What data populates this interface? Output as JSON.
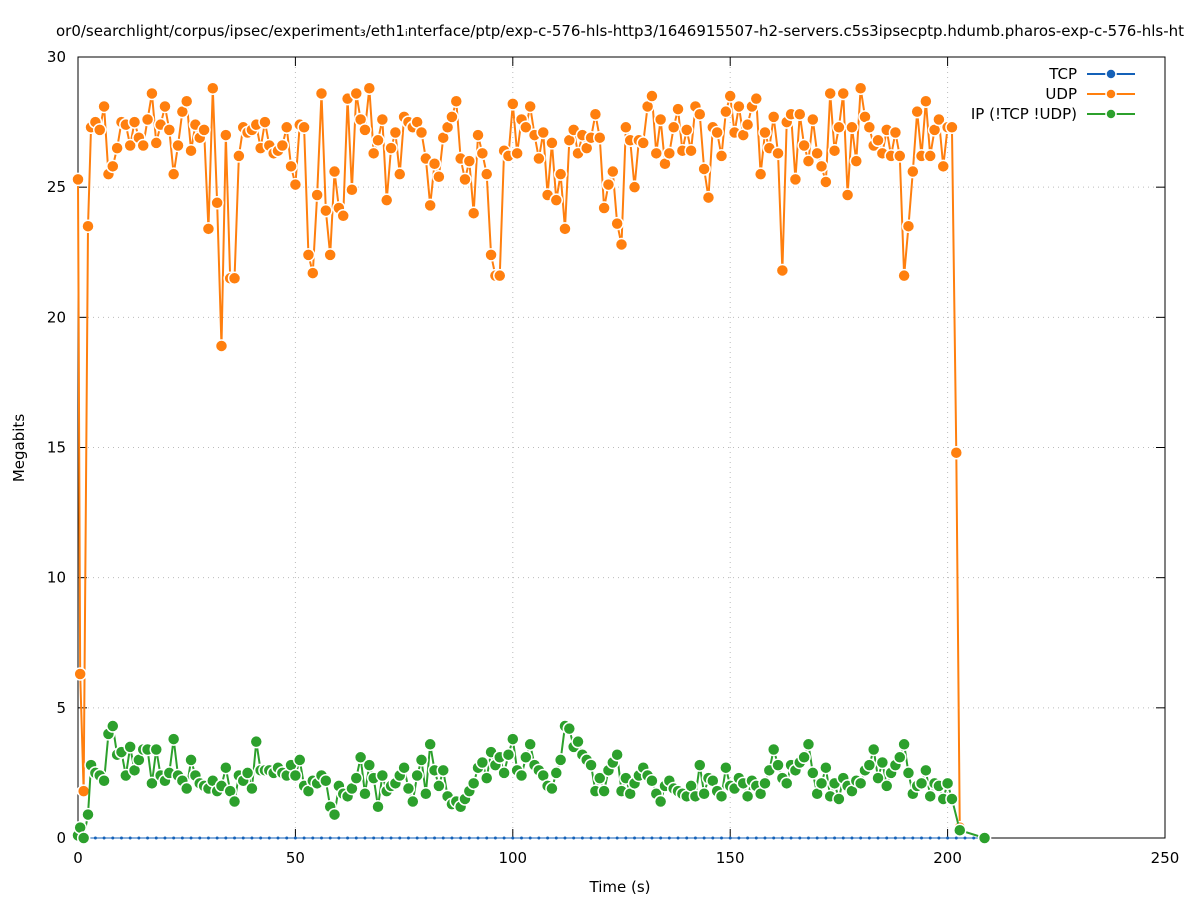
{
  "chart_data": {
    "type": "line",
    "title": "or0/searchlight/corpus/ipsec/experiment₃/eth1ᵢnterface/ptp/exp-c-576-hls-http3/1646915507-h2-servers.c5s3ipsecptp.hdumb.pharos-exp-c-576-hls-ht",
    "xlabel": "Time (s)",
    "ylabel": "Megabits",
    "xlim": [
      0,
      250
    ],
    "xticks": [
      0,
      50,
      100,
      150,
      200,
      250
    ],
    "ylim": [
      0,
      30
    ],
    "yticks": [
      0,
      5,
      10,
      15,
      20,
      25,
      30
    ],
    "grid": true,
    "legend": "top-right",
    "series": [
      {
        "name": "TCP",
        "color": "#1461b8",
        "x": [
          0,
          2,
          4,
          6,
          8,
          10,
          12,
          14,
          16,
          18,
          20,
          22,
          24,
          26,
          28,
          30,
          32,
          34,
          36,
          38,
          40,
          42,
          44,
          46,
          48,
          50,
          52,
          54,
          56,
          58,
          60,
          62,
          64,
          66,
          68,
          70,
          72,
          74,
          76,
          78,
          80,
          82,
          84,
          86,
          88,
          90,
          92,
          94,
          96,
          98,
          100,
          102,
          104,
          106,
          108,
          110,
          112,
          114,
          116,
          118,
          120,
          122,
          124,
          126,
          128,
          130,
          132,
          134,
          136,
          138,
          140,
          142,
          144,
          146,
          148,
          150,
          152,
          154,
          156,
          158,
          160,
          162,
          164,
          166,
          168,
          170,
          172,
          174,
          176,
          178,
          180,
          182,
          184,
          186,
          188,
          190,
          192,
          194,
          196,
          198,
          200,
          202,
          204,
          206,
          208
        ],
        "values": [
          0,
          0,
          0,
          0,
          0,
          0,
          0,
          0,
          0,
          0,
          0,
          0,
          0,
          0,
          0,
          0,
          0,
          0,
          0,
          0,
          0,
          0,
          0,
          0,
          0,
          0,
          0,
          0,
          0,
          0,
          0,
          0,
          0,
          0,
          0,
          0,
          0,
          0,
          0,
          0,
          0,
          0,
          0,
          0,
          0,
          0,
          0,
          0,
          0,
          0,
          0,
          0,
          0,
          0,
          0,
          0,
          0,
          0,
          0,
          0,
          0,
          0,
          0,
          0,
          0,
          0,
          0,
          0,
          0,
          0,
          0,
          0,
          0,
          0,
          0,
          0,
          0,
          0,
          0,
          0,
          0,
          0,
          0,
          0,
          0,
          0,
          0,
          0,
          0,
          0,
          0,
          0,
          0,
          0,
          0,
          0,
          0,
          0,
          0,
          0,
          0,
          0,
          0,
          0,
          0
        ]
      },
      {
        "name": "UDP",
        "color": "#ff7f0e",
        "x": [
          0,
          0.5,
          1.3,
          2.3,
          3,
          4,
          5,
          6,
          7,
          8,
          9,
          10,
          11,
          12,
          13,
          14,
          15,
          16,
          17,
          18,
          19,
          20,
          21,
          22,
          23,
          24,
          25,
          26,
          27,
          28,
          29,
          30,
          31,
          32,
          33,
          34,
          35,
          36,
          37,
          38,
          39,
          40,
          41,
          42,
          43,
          44,
          45,
          46,
          47,
          48,
          49,
          50,
          51,
          52,
          53,
          54,
          55,
          56,
          57,
          58,
          59,
          60,
          61,
          62,
          63,
          64,
          65,
          66,
          67,
          68,
          69,
          70,
          71,
          72,
          73,
          74,
          75,
          76,
          77,
          78,
          79,
          80,
          81,
          82,
          83,
          84,
          85,
          86,
          87,
          88,
          89,
          90,
          91,
          92,
          93,
          94,
          95,
          96,
          97,
          98,
          99,
          100,
          101,
          102,
          103,
          104,
          105,
          106,
          107,
          108,
          109,
          110,
          111,
          112,
          113,
          114,
          115,
          116,
          117,
          118,
          119,
          120,
          121,
          122,
          123,
          124,
          125,
          126,
          127,
          128,
          129,
          130,
          131,
          132,
          133,
          134,
          135,
          136,
          137,
          138,
          139,
          140,
          141,
          142,
          143,
          144,
          145,
          146,
          147,
          148,
          149,
          150,
          151,
          152,
          153,
          154,
          155,
          156,
          157,
          158,
          159,
          160,
          161,
          162,
          163,
          164,
          165,
          166,
          167,
          168,
          169,
          170,
          171,
          172,
          173,
          174,
          175,
          176,
          177,
          178,
          179,
          180,
          181,
          182,
          183,
          184,
          185,
          186,
          187,
          188,
          189,
          190,
          191,
          192,
          193,
          194,
          195,
          196,
          197,
          198,
          199,
          200,
          201,
          202,
          202.8
        ],
        "values": [
          25.3,
          6.3,
          1.8,
          23.5,
          27.3,
          27.5,
          27.2,
          28.1,
          25.5,
          25.8,
          26.5,
          27.5,
          27.4,
          26.6,
          27.5,
          26.9,
          26.6,
          27.6,
          28.6,
          26.7,
          27.4,
          28.1,
          27.2,
          25.5,
          26.6,
          27.9,
          28.3,
          26.4,
          27.4,
          26.9,
          27.2,
          23.4,
          28.8,
          24.4,
          18.9,
          27.0,
          21.5,
          21.5,
          26.2,
          27.3,
          27.1,
          27.2,
          27.4,
          26.5,
          27.5,
          26.6,
          26.3,
          26.4,
          26.6,
          27.3,
          25.8,
          25.1,
          27.4,
          27.3,
          22.4,
          21.7,
          24.7,
          28.6,
          24.1,
          22.4,
          25.6,
          24.2,
          23.9,
          28.4,
          24.9,
          28.6,
          27.6,
          27.2,
          28.8,
          26.3,
          26.8,
          27.6,
          24.5,
          26.5,
          27.1,
          25.5,
          27.7,
          27.5,
          27.3,
          27.5,
          27.1,
          26.1,
          24.3,
          25.9,
          25.4,
          26.9,
          27.3,
          27.7,
          28.3,
          26.1,
          25.3,
          26.0,
          24.0,
          27.0,
          26.3,
          25.5,
          22.4,
          21.6,
          21.6,
          26.4,
          26.2,
          28.2,
          26.3,
          27.6,
          27.3,
          28.1,
          27.0,
          26.1,
          27.1,
          24.7,
          26.7,
          24.5,
          25.5,
          23.4,
          26.8,
          27.2,
          26.3,
          27.0,
          26.5,
          26.9,
          27.8,
          26.9,
          24.2,
          25.1,
          25.6,
          23.6,
          22.8,
          27.3,
          26.8,
          25.0,
          26.8,
          26.7,
          28.1,
          28.5,
          26.3,
          27.6,
          25.9,
          26.3,
          27.3,
          28.0,
          26.4,
          27.2,
          26.4,
          28.1,
          27.8,
          25.7,
          24.6,
          27.3,
          27.1,
          26.2,
          27.9,
          28.5,
          27.1,
          28.1,
          27.0,
          27.4,
          28.1,
          28.4,
          25.5,
          27.1,
          26.5,
          27.7,
          26.3,
          21.8,
          27.5,
          27.8,
          25.3,
          27.8,
          26.6,
          26.0,
          27.6,
          26.3,
          25.8,
          25.2,
          28.6,
          26.4,
          27.3,
          28.6,
          24.7,
          27.3,
          26.0,
          28.8,
          27.7,
          27.3,
          26.6,
          26.8,
          26.3,
          27.2,
          26.2,
          27.1,
          26.2,
          21.6,
          23.5,
          25.6,
          27.9,
          26.2,
          28.3,
          26.2,
          27.2,
          27.6,
          25.8,
          27.3,
          27.3,
          14.8,
          0.4
        ]
      },
      {
        "name": "IP (!TCP  !UDP)",
        "color": "#2ca02c",
        "x": [
          0,
          0.5,
          1.3,
          2.3,
          3,
          4,
          5,
          6,
          7,
          8,
          9,
          10,
          11,
          12,
          13,
          14,
          15,
          16,
          17,
          18,
          19,
          20,
          21,
          22,
          23,
          24,
          25,
          26,
          27,
          28,
          29,
          30,
          31,
          32,
          33,
          34,
          35,
          36,
          37,
          38,
          39,
          40,
          41,
          42,
          43,
          44,
          45,
          46,
          47,
          48,
          49,
          50,
          51,
          52,
          53,
          54,
          55,
          56,
          57,
          58,
          59,
          60,
          61,
          62,
          63,
          64,
          65,
          66,
          67,
          68,
          69,
          70,
          71,
          72,
          73,
          74,
          75,
          76,
          77,
          78,
          79,
          80,
          81,
          82,
          83,
          84,
          85,
          86,
          87,
          88,
          89,
          90,
          91,
          92,
          93,
          94,
          95,
          96,
          97,
          98,
          99,
          100,
          101,
          102,
          103,
          104,
          105,
          106,
          107,
          108,
          109,
          110,
          111,
          112,
          113,
          114,
          115,
          116,
          117,
          118,
          119,
          120,
          121,
          122,
          123,
          124,
          125,
          126,
          127,
          128,
          129,
          130,
          131,
          132,
          133,
          134,
          135,
          136,
          137,
          138,
          139,
          140,
          141,
          142,
          143,
          144,
          145,
          146,
          147,
          148,
          149,
          150,
          151,
          152,
          153,
          154,
          155,
          156,
          157,
          158,
          159,
          160,
          161,
          162,
          163,
          164,
          165,
          166,
          167,
          168,
          169,
          170,
          171,
          172,
          173,
          174,
          175,
          176,
          177,
          178,
          179,
          180,
          181,
          182,
          183,
          184,
          185,
          186,
          187,
          188,
          189,
          190,
          191,
          192,
          193,
          194,
          195,
          196,
          197,
          198,
          199,
          200,
          201,
          202.8,
          208.5
        ],
        "values": [
          0.1,
          0.4,
          0,
          0.9,
          2.8,
          2.5,
          2.4,
          2.2,
          4.0,
          4.3,
          3.2,
          3.3,
          2.4,
          3.5,
          2.6,
          3.0,
          3.4,
          3.4,
          2.1,
          3.4,
          2.4,
          2.2,
          2.5,
          3.8,
          2.4,
          2.2,
          1.9,
          3.0,
          2.4,
          2.1,
          2.0,
          1.9,
          2.2,
          1.8,
          2.0,
          2.7,
          1.8,
          1.4,
          2.4,
          2.2,
          2.5,
          1.9,
          3.7,
          2.6,
          2.6,
          2.6,
          2.5,
          2.7,
          2.5,
          2.4,
          2.8,
          2.4,
          3.0,
          2.0,
          1.8,
          2.2,
          2.1,
          2.4,
          2.2,
          1.2,
          0.9,
          2.0,
          1.7,
          1.6,
          1.9,
          2.3,
          3.1,
          1.7,
          2.8,
          2.3,
          1.2,
          2.4,
          1.8,
          2.0,
          2.1,
          2.4,
          2.7,
          1.9,
          1.4,
          2.4,
          3.0,
          1.7,
          3.6,
          2.6,
          2.0,
          2.6,
          1.6,
          1.3,
          1.4,
          1.2,
          1.5,
          1.8,
          2.1,
          2.7,
          2.9,
          2.3,
          3.3,
          2.8,
          3.1,
          2.5,
          3.2,
          3.8,
          2.6,
          2.4,
          3.1,
          3.6,
          2.8,
          2.6,
          2.4,
          2.0,
          1.9,
          2.5,
          3.0,
          4.3,
          4.2,
          3.5,
          3.7,
          3.2,
          3.0,
          2.8,
          1.8,
          2.3,
          1.8,
          2.6,
          2.9,
          3.2,
          1.8,
          2.3,
          1.7,
          2.1,
          2.4,
          2.7,
          2.4,
          2.2,
          1.7,
          1.4,
          2.0,
          2.2,
          1.9,
          1.8,
          1.7,
          1.6,
          2.0,
          1.6,
          2.8,
          1.7,
          2.3,
          2.2,
          1.8,
          1.6,
          2.7,
          2.0,
          1.9,
          2.3,
          2.1,
          1.6,
          2.2,
          2.0,
          1.7,
          2.1,
          2.6,
          3.4,
          2.8,
          2.3,
          2.1,
          2.8,
          2.6,
          2.9,
          3.1,
          3.6,
          2.5,
          1.7,
          2.1,
          2.7,
          1.6,
          2.1,
          1.5,
          2.3,
          2.0,
          1.8,
          2.2,
          2.1,
          2.6,
          2.8,
          3.4,
          2.3,
          2.9,
          2.0,
          2.5,
          2.8,
          3.1,
          3.6,
          2.5,
          1.7,
          2.0,
          2.1,
          2.6,
          1.6,
          2.1,
          2.0,
          1.5,
          2.1,
          1.5,
          0.3,
          0
        ]
      }
    ]
  }
}
